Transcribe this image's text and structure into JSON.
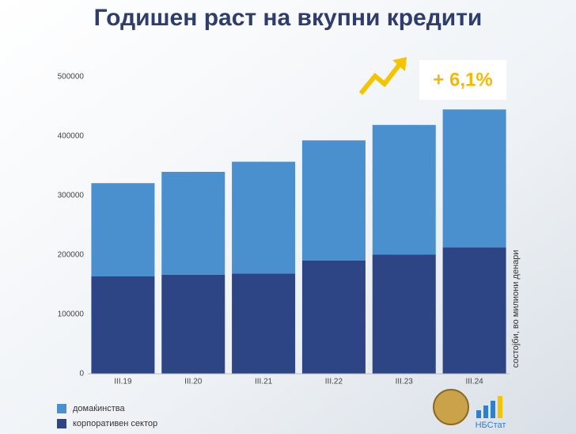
{
  "chart_data": {
    "type": "stacked_bar",
    "title": "Годишен раст на вкупни кредити",
    "annotation": "+ 6,1%",
    "y_label": "состојби, во милиони денари",
    "logo_text": "НБСтат",
    "categories": [
      "III.19",
      "III.20",
      "III.21",
      "III.22",
      "III.23",
      "III.24"
    ],
    "series": [
      {
        "name": "корпоративен сектор",
        "color": "#2d4585",
        "values": [
          164000,
          167000,
          169000,
          191000,
          201000,
          213000
        ]
      },
      {
        "name": "домаќинства",
        "color": "#4a8fce",
        "values": [
          157000,
          173000,
          188000,
          202000,
          218000,
          232000
        ]
      }
    ],
    "ylim": [
      0,
      500000
    ],
    "yticks": [
      0,
      100000,
      200000,
      300000,
      400000,
      500000
    ],
    "grid": false
  }
}
